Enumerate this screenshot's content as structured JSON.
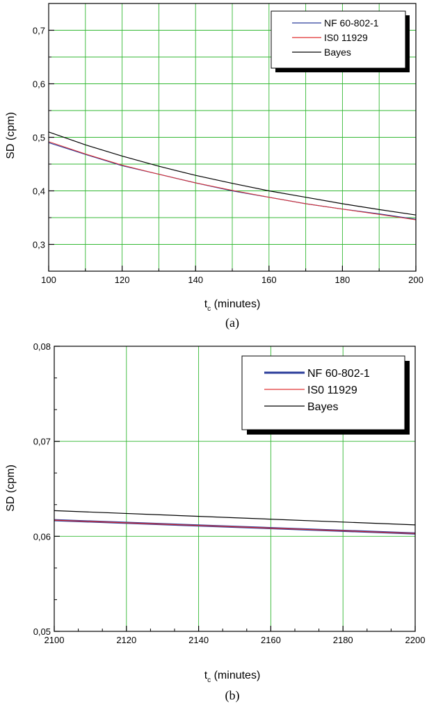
{
  "chart_data": [
    {
      "type": "line",
      "caption": "(a)",
      "xlabel_main": "t",
      "xlabel_sub": "c",
      "xlabel_rest": " (minutes)",
      "ylabel": "SD (cpm)",
      "xlim": [
        100,
        200
      ],
      "ylim": [
        0.25,
        0.75
      ],
      "x_ticks": [
        100,
        120,
        140,
        160,
        180,
        200
      ],
      "x_tick_labels": [
        "100",
        "120",
        "140",
        "160",
        "180",
        "200"
      ],
      "y_ticks": [
        0.3,
        0.4,
        0.5,
        0.6,
        0.7
      ],
      "y_tick_labels": [
        "0,3",
        "0,4",
        "0,5",
        "0,6",
        "0,7"
      ],
      "x_gridlines": [
        110,
        120,
        130,
        140,
        150,
        160,
        170,
        180,
        190
      ],
      "y_gridlines": [
        0.3,
        0.35,
        0.4,
        0.45,
        0.5,
        0.55,
        0.6,
        0.65,
        0.7
      ],
      "grid": true,
      "legend_position": "top-right",
      "x": [
        100,
        110,
        120,
        130,
        140,
        150,
        160,
        170,
        180,
        190,
        200
      ],
      "series": [
        {
          "name": "NF 60-802-1",
          "color": "#2a3c9a",
          "values": [
            0.49,
            0.468,
            0.447,
            0.431,
            0.415,
            0.4,
            0.388,
            0.376,
            0.366,
            0.357,
            0.347
          ]
        },
        {
          "name": "IS0 11929",
          "color": "#e03030",
          "values": [
            0.492,
            0.469,
            0.448,
            0.431,
            0.415,
            0.401,
            0.388,
            0.376,
            0.366,
            0.356,
            0.346
          ]
        },
        {
          "name": "Bayes",
          "color": "#000000",
          "values": [
            0.51,
            0.486,
            0.465,
            0.446,
            0.429,
            0.414,
            0.4,
            0.388,
            0.376,
            0.365,
            0.355
          ]
        }
      ]
    },
    {
      "type": "line",
      "caption": "(b)",
      "xlabel_main": "t",
      "xlabel_sub": "c",
      "xlabel_rest": " (minutes)",
      "ylabel": "SD (cpm)",
      "xlim": [
        2100,
        2200
      ],
      "ylim": [
        0.05,
        0.08
      ],
      "x_ticks": [
        2100,
        2120,
        2140,
        2160,
        2180,
        2200
      ],
      "x_tick_labels": [
        "2100",
        "2120",
        "2140",
        "2160",
        "2180",
        "2200"
      ],
      "y_ticks": [
        0.05,
        0.06,
        0.07,
        0.08
      ],
      "y_tick_labels": [
        "0,05",
        "0,06",
        "0,07",
        "0,08"
      ],
      "x_gridlines": [
        2120,
        2140,
        2160,
        2180
      ],
      "y_gridlines": [
        0.06,
        0.07
      ],
      "grid": true,
      "legend_position": "top-right",
      "x": [
        2100,
        2200
      ],
      "series": [
        {
          "name": "NF 60-802-1",
          "color": "#2a3c9a",
          "values": [
            0.0617,
            0.0603
          ]
        },
        {
          "name": "IS0 11929",
          "color": "#e03030",
          "values": [
            0.0617,
            0.0603
          ]
        },
        {
          "name": "Bayes",
          "color": "#000000",
          "values": [
            0.0627,
            0.0612
          ]
        }
      ]
    }
  ]
}
